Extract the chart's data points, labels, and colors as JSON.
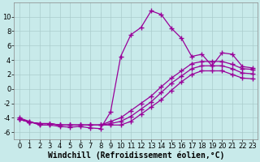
{
  "background_color": "#c8eaea",
  "grid_color": "#aacccc",
  "line_color": "#990099",
  "marker": "+",
  "markersize": 4,
  "linewidth": 0.9,
  "xlabel": "Windchill (Refroidissement éolien,°C)",
  "xlabel_fontsize": 7,
  "tick_fontsize": 6,
  "xlim": [
    -0.5,
    23.5
  ],
  "ylim": [
    -7,
    12
  ],
  "yticks": [
    -6,
    -4,
    -2,
    0,
    2,
    4,
    6,
    8,
    10
  ],
  "xticks": [
    0,
    1,
    2,
    3,
    4,
    5,
    6,
    7,
    8,
    9,
    10,
    11,
    12,
    13,
    14,
    15,
    16,
    17,
    18,
    19,
    20,
    21,
    22,
    23
  ],
  "series": [
    {
      "x": [
        0,
        1,
        2,
        3,
        4,
        5,
        6,
        7,
        8,
        9,
        10,
        11,
        12,
        13,
        14,
        15,
        16,
        17,
        18,
        19,
        20,
        21,
        22,
        23
      ],
      "y": [
        -4.0,
        -4.5,
        -5.0,
        -5.0,
        -5.2,
        -5.3,
        -5.2,
        -5.4,
        -5.5,
        -3.2,
        4.5,
        7.5,
        8.5,
        10.8,
        10.3,
        8.4,
        7.0,
        4.5,
        4.8,
        3.2,
        5.0,
        4.8,
        3.1,
        2.9
      ]
    },
    {
      "x": [
        0,
        1,
        2,
        3,
        4,
        5,
        6,
        7,
        8,
        9,
        10,
        11,
        12,
        13,
        14,
        15,
        16,
        17,
        18,
        19,
        20,
        21,
        22,
        23
      ],
      "y": [
        -4.2,
        -4.6,
        -4.8,
        -4.8,
        -5.0,
        -5.0,
        -5.0,
        -5.0,
        -5.0,
        -4.5,
        -4.0,
        -3.0,
        -2.0,
        -1.0,
        0.3,
        1.5,
        2.5,
        3.5,
        3.8,
        3.8,
        3.8,
        3.4,
        2.8,
        2.7
      ]
    },
    {
      "x": [
        0,
        1,
        2,
        3,
        4,
        5,
        6,
        7,
        8,
        9,
        10,
        11,
        12,
        13,
        14,
        15,
        16,
        17,
        18,
        19,
        20,
        21,
        22,
        23
      ],
      "y": [
        -4.2,
        -4.6,
        -4.8,
        -4.8,
        -5.0,
        -5.0,
        -5.0,
        -5.0,
        -5.0,
        -4.8,
        -4.5,
        -3.8,
        -2.8,
        -1.8,
        -0.5,
        0.8,
        1.8,
        2.8,
        3.2,
        3.2,
        3.2,
        2.8,
        2.2,
        2.1
      ]
    },
    {
      "x": [
        0,
        1,
        2,
        3,
        4,
        5,
        6,
        7,
        8,
        9,
        10,
        11,
        12,
        13,
        14,
        15,
        16,
        17,
        18,
        19,
        20,
        21,
        22,
        23
      ],
      "y": [
        -4.2,
        -4.6,
        -4.8,
        -4.8,
        -5.0,
        -5.0,
        -5.0,
        -5.0,
        -5.0,
        -5.0,
        -5.0,
        -4.5,
        -3.5,
        -2.5,
        -1.5,
        -0.2,
        1.0,
        2.0,
        2.5,
        2.5,
        2.5,
        2.0,
        1.5,
        1.4
      ]
    }
  ]
}
